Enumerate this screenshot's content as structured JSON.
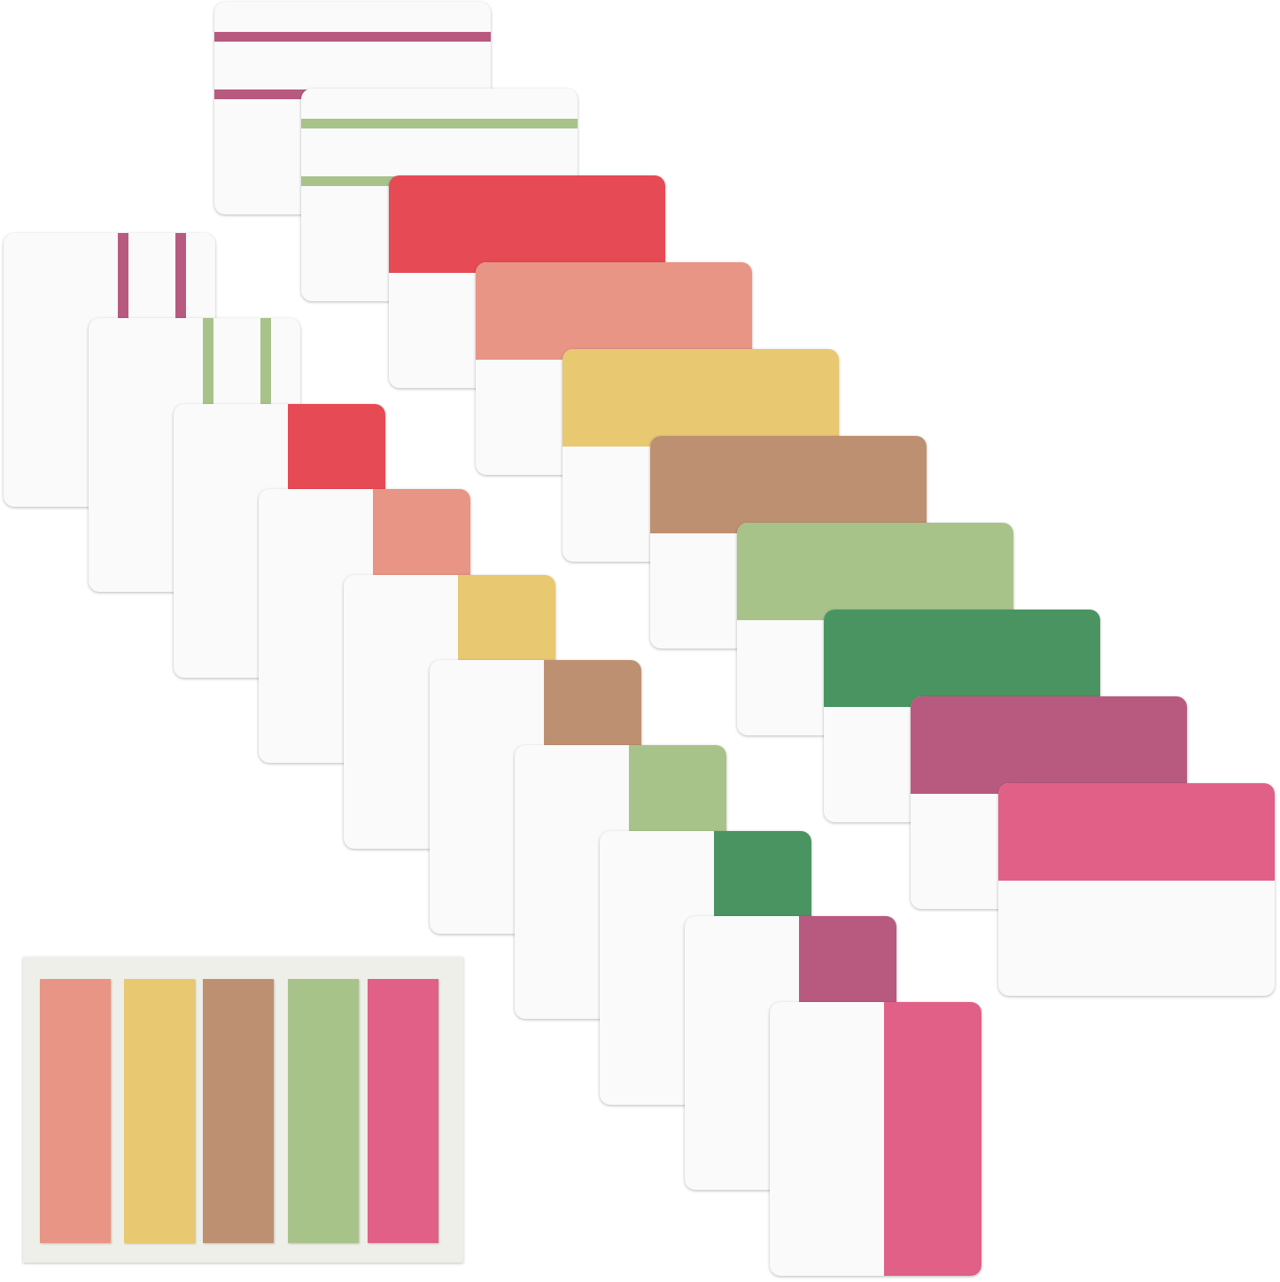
{
  "colors": {
    "magenta": "#b85a80",
    "light_green": "#a8c38a",
    "red": "#e64a55",
    "salmon": "#e89585",
    "yellow": "#e8c870",
    "brown": "#be9072",
    "dark_green": "#4a9462",
    "pink": "#e06088"
  },
  "horizontal_tabs": [
    {
      "style": "stripes",
      "color": "#b85a80"
    },
    {
      "style": "stripes",
      "color": "#a8c38a"
    },
    {
      "style": "solid",
      "color": "#e64a55"
    },
    {
      "style": "solid",
      "color": "#e89585"
    },
    {
      "style": "solid",
      "color": "#e8c870"
    },
    {
      "style": "solid",
      "color": "#be9072"
    },
    {
      "style": "solid",
      "color": "#a8c38a"
    },
    {
      "style": "solid",
      "color": "#4a9462"
    },
    {
      "style": "solid",
      "color": "#b85a80"
    },
    {
      "style": "solid",
      "color": "#e06088"
    }
  ],
  "vertical_tabs": [
    {
      "style": "stripes",
      "color": "#b85a80"
    },
    {
      "style": "stripes",
      "color": "#a8c38a"
    },
    {
      "style": "solid",
      "color": "#e64a55"
    },
    {
      "style": "solid",
      "color": "#e89585"
    },
    {
      "style": "solid",
      "color": "#e8c870"
    },
    {
      "style": "solid",
      "color": "#be9072"
    },
    {
      "style": "solid",
      "color": "#a8c38a"
    },
    {
      "style": "solid",
      "color": "#4a9462"
    },
    {
      "style": "solid",
      "color": "#b85a80"
    },
    {
      "style": "solid",
      "color": "#e06088"
    }
  ],
  "flags": [
    "#e89585",
    "#e8c870",
    "#be9072",
    "#a8c38a",
    "#e06088"
  ]
}
